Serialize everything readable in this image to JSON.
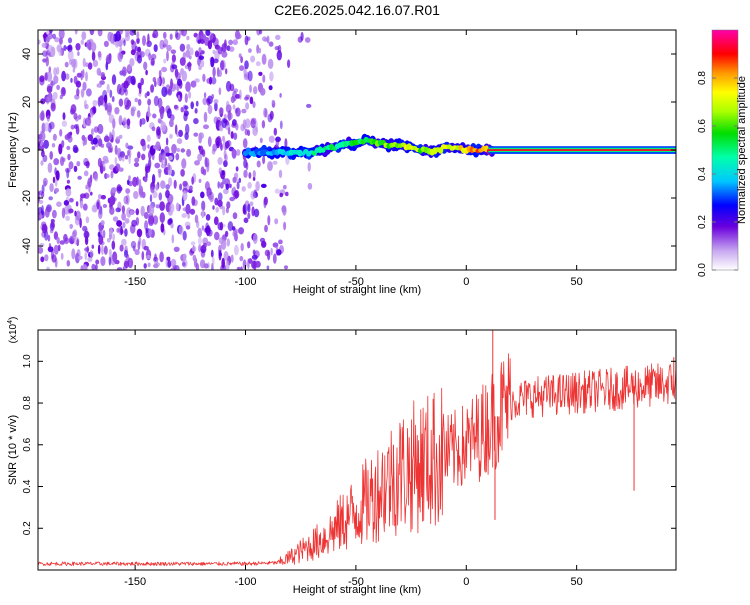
{
  "page": {
    "title": "C2E6.2025.042.16.07.R01"
  },
  "chart_data": [
    {
      "type": "heatmap",
      "title": "C2E6.2025.042.16.07.R01",
      "xlabel": "Height of straight line (km)",
      "ylabel": "Frequency (Hz)",
      "xlim": [
        -194,
        95
      ],
      "ylim": [
        -50,
        50
      ],
      "xticks": [
        -150,
        -100,
        -50,
        0,
        50
      ],
      "yticks": [
        -40,
        -20,
        0,
        20,
        40
      ],
      "xtick_labels": [
        "-150",
        "-100",
        "-50",
        "0",
        "50"
      ],
      "ytick_labels": [
        "-40",
        "-20",
        "0",
        "20",
        "40"
      ],
      "colorbar": {
        "label": "Normalized spectral amplitude",
        "range": [
          0,
          1
        ],
        "ticks": [
          0.0,
          0.2,
          0.4,
          0.6,
          0.8
        ],
        "tick_labels": [
          "0.0",
          "0.2",
          "0.4",
          "0.6",
          "0.8"
        ]
      },
      "noise_region_x": [
        -194,
        -80
      ],
      "signal_track": {
        "x": [
          -100,
          -90,
          -80,
          -70,
          -60,
          -50,
          -45,
          -40,
          -35,
          -30,
          -25,
          -20,
          -15,
          -10,
          -5,
          0,
          5,
          10,
          95
        ],
        "freq": [
          -1,
          -1,
          -1,
          -1,
          1,
          3,
          4,
          3,
          2,
          2,
          1,
          0,
          -1,
          1,
          1,
          0,
          0,
          0,
          0
        ],
        "amplitude": [
          0.35,
          0.4,
          0.45,
          0.5,
          0.55,
          0.6,
          0.6,
          0.65,
          0.7,
          0.7,
          0.75,
          0.7,
          0.75,
          0.8,
          0.8,
          0.85,
          0.9,
          0.95,
          0.95
        ]
      }
    },
    {
      "type": "line",
      "xlabel": "Height of straight line (km)",
      "ylabel": "SNR (10 * v/v)",
      "ylabel_exponent": "(x10",
      "ylabel_exponent_power": "4",
      "ylabel_exponent_close": ")",
      "xlim": [
        -194,
        95
      ],
      "ylim": [
        0,
        11500
      ],
      "xticks": [
        -150,
        -100,
        -50,
        0,
        50
      ],
      "xtick_labels": [
        "-150",
        "-100",
        "-50",
        "0",
        "50"
      ],
      "yticks": [
        2000,
        4000,
        6000,
        8000,
        10000
      ],
      "ytick_labels": [
        "0.2",
        "0.4",
        "0.6",
        "0.8",
        "1.0"
      ],
      "color": "#ee3333",
      "series": [
        {
          "name": "SNR",
          "x": [
            -194,
            -150,
            -100,
            -85,
            -80,
            -75,
            -70,
            -65,
            -60,
            -55,
            -50,
            -45,
            -40,
            -35,
            -30,
            -25,
            -20,
            -15,
            -10,
            -5,
            0,
            5,
            10,
            15,
            20,
            30,
            40,
            50,
            60,
            70,
            80,
            90,
            95
          ],
          "y": [
            300,
            300,
            300,
            350,
            600,
            900,
            1200,
            1500,
            1900,
            2400,
            2800,
            3300,
            3800,
            4300,
            4700,
            4900,
            5100,
            5300,
            5500,
            5700,
            6000,
            6400,
            7000,
            7600,
            8100,
            8300,
            8400,
            8500,
            8600,
            8700,
            8800,
            8900,
            9000
          ]
        }
      ],
      "spikes": [
        {
          "x": 12,
          "y": 11500
        },
        {
          "x": 13,
          "y": 2400
        },
        {
          "x": 76,
          "y": 3800
        },
        {
          "x": 94,
          "y": 10200
        },
        {
          "x": -15,
          "y": 8200
        },
        {
          "x": -33,
          "y": 6000
        }
      ]
    }
  ]
}
